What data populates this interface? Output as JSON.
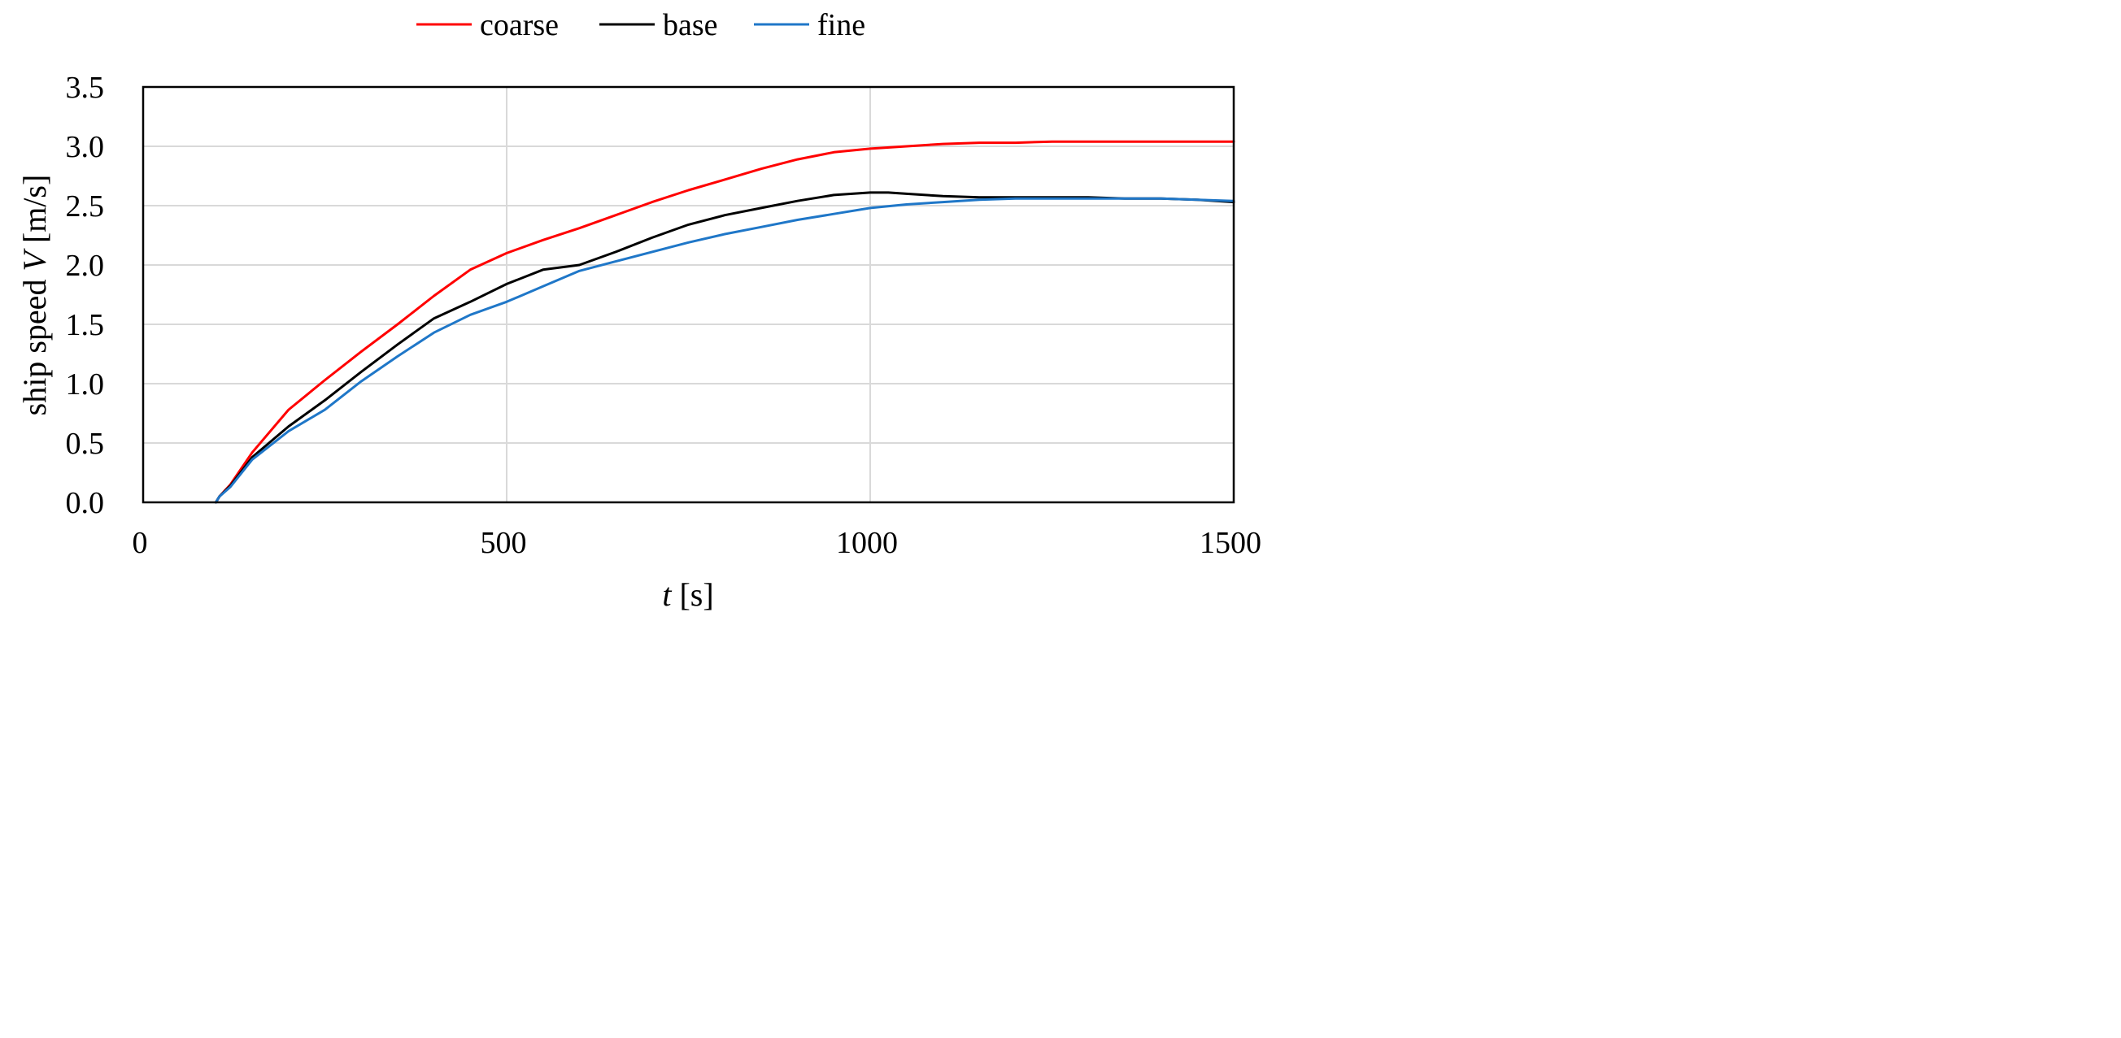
{
  "chart_data": {
    "type": "line",
    "title": "",
    "xlabel_italic": "t",
    "xlabel_rest": " [s]",
    "ylabel_prefix": "ship speed ",
    "ylabel_italic": "V",
    "ylabel_suffix": " [m/s]",
    "xlim": [
      0,
      1500
    ],
    "ylim": [
      0,
      3.5
    ],
    "x_ticks": [
      0,
      500,
      1000,
      1500
    ],
    "x_tick_labels": [
      "0",
      "500",
      "1000",
      "1500"
    ],
    "y_ticks": [
      0,
      0.5,
      1.0,
      1.5,
      2.0,
      2.5,
      3.0,
      3.5
    ],
    "y_tick_labels": [
      "0.0",
      "0.5",
      "1.0",
      "1.5",
      "2.0",
      "2.5",
      "3.0",
      "3.5"
    ],
    "grid": true,
    "legend_position": "top",
    "series": [
      {
        "name": "coarse",
        "color": "#ff0000",
        "x": [
          100,
          105,
          120,
          150,
          200,
          250,
          300,
          350,
          400,
          450,
          500,
          550,
          600,
          650,
          700,
          750,
          800,
          850,
          900,
          950,
          1000,
          1050,
          1100,
          1150,
          1200,
          1250,
          1300,
          1350,
          1400,
          1450,
          1500
        ],
        "y": [
          0,
          0.05,
          0.15,
          0.42,
          0.78,
          1.03,
          1.27,
          1.5,
          1.74,
          1.96,
          2.1,
          2.21,
          2.31,
          2.42,
          2.53,
          2.63,
          2.72,
          2.81,
          2.89,
          2.95,
          2.98,
          3.0,
          3.02,
          3.03,
          3.03,
          3.04,
          3.04,
          3.04,
          3.04,
          3.04,
          3.04
        ]
      },
      {
        "name": "base",
        "color": "#000000",
        "x": [
          100,
          105,
          120,
          150,
          200,
          250,
          300,
          350,
          400,
          450,
          500,
          550,
          600,
          650,
          700,
          750,
          800,
          850,
          900,
          950,
          1000,
          1025,
          1050,
          1100,
          1150,
          1200,
          1250,
          1300,
          1350,
          1400,
          1450,
          1500
        ],
        "y": [
          0,
          0.05,
          0.14,
          0.38,
          0.64,
          0.86,
          1.1,
          1.33,
          1.55,
          1.69,
          1.84,
          1.96,
          2.0,
          2.11,
          2.23,
          2.34,
          2.42,
          2.48,
          2.54,
          2.59,
          2.61,
          2.61,
          2.6,
          2.58,
          2.57,
          2.57,
          2.57,
          2.57,
          2.56,
          2.56,
          2.55,
          2.53
        ]
      },
      {
        "name": "fine",
        "color": "#1f77c8",
        "x": [
          100,
          105,
          120,
          150,
          200,
          250,
          300,
          350,
          400,
          450,
          500,
          550,
          600,
          650,
          700,
          750,
          800,
          850,
          900,
          950,
          1000,
          1050,
          1100,
          1150,
          1200,
          1250,
          1300,
          1350,
          1400,
          1450,
          1500
        ],
        "y": [
          0,
          0.05,
          0.13,
          0.36,
          0.6,
          0.78,
          1.02,
          1.23,
          1.43,
          1.58,
          1.69,
          1.82,
          1.95,
          2.03,
          2.11,
          2.19,
          2.26,
          2.32,
          2.38,
          2.43,
          2.48,
          2.51,
          2.53,
          2.55,
          2.56,
          2.56,
          2.56,
          2.56,
          2.56,
          2.55,
          2.54
        ]
      }
    ]
  }
}
